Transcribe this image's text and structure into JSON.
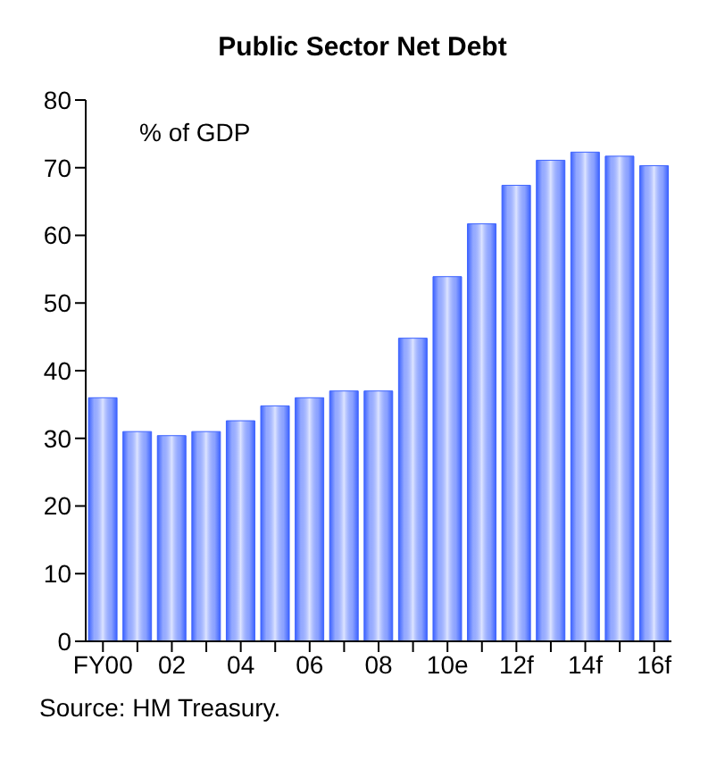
{
  "chart_data": {
    "type": "bar",
    "title": "Public Sector Net Debt",
    "categories": [
      "FY00",
      null,
      "02",
      null,
      "04",
      null,
      "06",
      null,
      "08",
      null,
      "10e",
      null,
      "12f",
      null,
      "14f",
      null,
      "16f"
    ],
    "values": [
      36,
      31,
      30.4,
      31,
      32.6,
      34.8,
      36,
      37,
      37,
      44.8,
      53.9,
      61.7,
      67.4,
      71.1,
      72.3,
      71.7,
      70.3
    ],
    "color": "#3d63ff",
    "ylim": [
      0,
      80
    ],
    "yticks": [
      0,
      10,
      20,
      30,
      40,
      50,
      60,
      70,
      80
    ],
    "annotations": [
      "% of GDP",
      "Source: HM Treasury."
    ]
  }
}
